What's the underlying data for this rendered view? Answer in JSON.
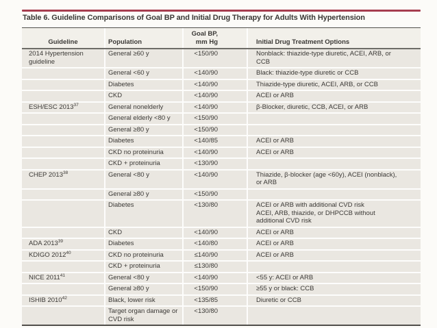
{
  "title": "Table 6. Guideline Comparisons of Goal BP and Initial Drug Therapy for Adults With Hypertension",
  "colors": {
    "accent_bar": "#a63d4f",
    "row_background": "#eae7e1",
    "header_background": "#f2f0ea",
    "rule_dark": "#504e4a",
    "rule_mid": "#6d6b66",
    "text": "#3b3936",
    "page_background": "#fcfbf8"
  },
  "table": {
    "columns": [
      {
        "label": "Guideline"
      },
      {
        "label": "Population"
      },
      {
        "label": "Goal BP,",
        "label2": "mm Hg"
      },
      {
        "label": "Initial Drug Treatment Options"
      }
    ],
    "rows": [
      {
        "guideline": "2014 Hypertension guideline",
        "ref": "",
        "population": "General ≥60 y",
        "goal_bp": "<150/90",
        "treatment": [
          "Nonblack: thiazide-type diuretic, ACEI, ARB, or CCB"
        ]
      },
      {
        "guideline": "",
        "ref": "",
        "population": "General <60 y",
        "goal_bp": "<140/90",
        "treatment": [
          "Black: thiazide-type diuretic or CCB"
        ]
      },
      {
        "guideline": "",
        "ref": "",
        "population": "Diabetes",
        "goal_bp": "<140/90",
        "treatment": [
          "Thiazide-type diuretic, ACEI, ARB, or CCB"
        ]
      },
      {
        "guideline": "",
        "ref": "",
        "population": "CKD",
        "goal_bp": "<140/90",
        "treatment": [
          "ACEI or ARB"
        ]
      },
      {
        "guideline": "ESH/ESC 2013",
        "ref": "37",
        "population": "General nonelderly",
        "goal_bp": "<140/90",
        "treatment": [
          "β-Blocker, diuretic, CCB, ACEI, or ARB"
        ]
      },
      {
        "guideline": "",
        "ref": "",
        "population": "General elderly <80 y",
        "goal_bp": "<150/90",
        "treatment": []
      },
      {
        "guideline": "",
        "ref": "",
        "population": "General ≥80 y",
        "goal_bp": "<150/90",
        "treatment": []
      },
      {
        "guideline": "",
        "ref": "",
        "population": "Diabetes",
        "goal_bp": "<140/85",
        "treatment": [
          "ACEI or ARB"
        ]
      },
      {
        "guideline": "",
        "ref": "",
        "population": "CKD no proteinuria",
        "goal_bp": "<140/90",
        "treatment": [
          "ACEI or ARB"
        ]
      },
      {
        "guideline": "",
        "ref": "",
        "population": "CKD + proteinuria",
        "goal_bp": "<130/90",
        "treatment": []
      },
      {
        "guideline": "CHEP 2013",
        "ref": "38",
        "population": "General <80 y",
        "goal_bp": "<140/90",
        "treatment": [
          "Thiazide, β-blocker (age <60y), ACEI (nonblack), or ARB"
        ]
      },
      {
        "guideline": "",
        "ref": "",
        "population": "General ≥80 y",
        "goal_bp": "<150/90",
        "treatment": []
      },
      {
        "guideline": "",
        "ref": "",
        "population": "Diabetes",
        "goal_bp": "<130/80",
        "treatment": [
          "ACEI or ARB with additional CVD risk",
          "ACEI, ARB, thiazide, or DHPCCB without additional CVD risk"
        ]
      },
      {
        "guideline": "",
        "ref": "",
        "population": "CKD",
        "goal_bp": "<140/90",
        "treatment": [
          "ACEI or ARB"
        ]
      },
      {
        "guideline": "ADA 2013",
        "ref": "39",
        "population": "Diabetes",
        "goal_bp": "<140/80",
        "treatment": [
          "ACEI or ARB"
        ]
      },
      {
        "guideline": "KDIGO 2012",
        "ref": "40",
        "population": "CKD no proteinuria",
        "goal_bp": "≤140/90",
        "treatment": [
          "ACEI or ARB"
        ]
      },
      {
        "guideline": "",
        "ref": "",
        "population": "CKD + proteinuria",
        "goal_bp": "≤130/80",
        "treatment": []
      },
      {
        "guideline": "NICE 2011",
        "ref": "41",
        "population": "General <80 y",
        "goal_bp": "<140/90",
        "treatment": [
          "<55 y: ACEI or ARB"
        ]
      },
      {
        "guideline": "",
        "ref": "",
        "population": "General ≥80 y",
        "goal_bp": "<150/90",
        "treatment": [
          "≥55 y or black: CCB"
        ]
      },
      {
        "guideline": "ISHIB 2010",
        "ref": "42",
        "population": "Black, lower risk",
        "goal_bp": "<135/85",
        "treatment": [
          "Diuretic or CCB"
        ]
      },
      {
        "guideline": "",
        "ref": "",
        "population": "Target organ damage or CVD risk",
        "goal_bp": "<130/80",
        "treatment": []
      }
    ]
  }
}
